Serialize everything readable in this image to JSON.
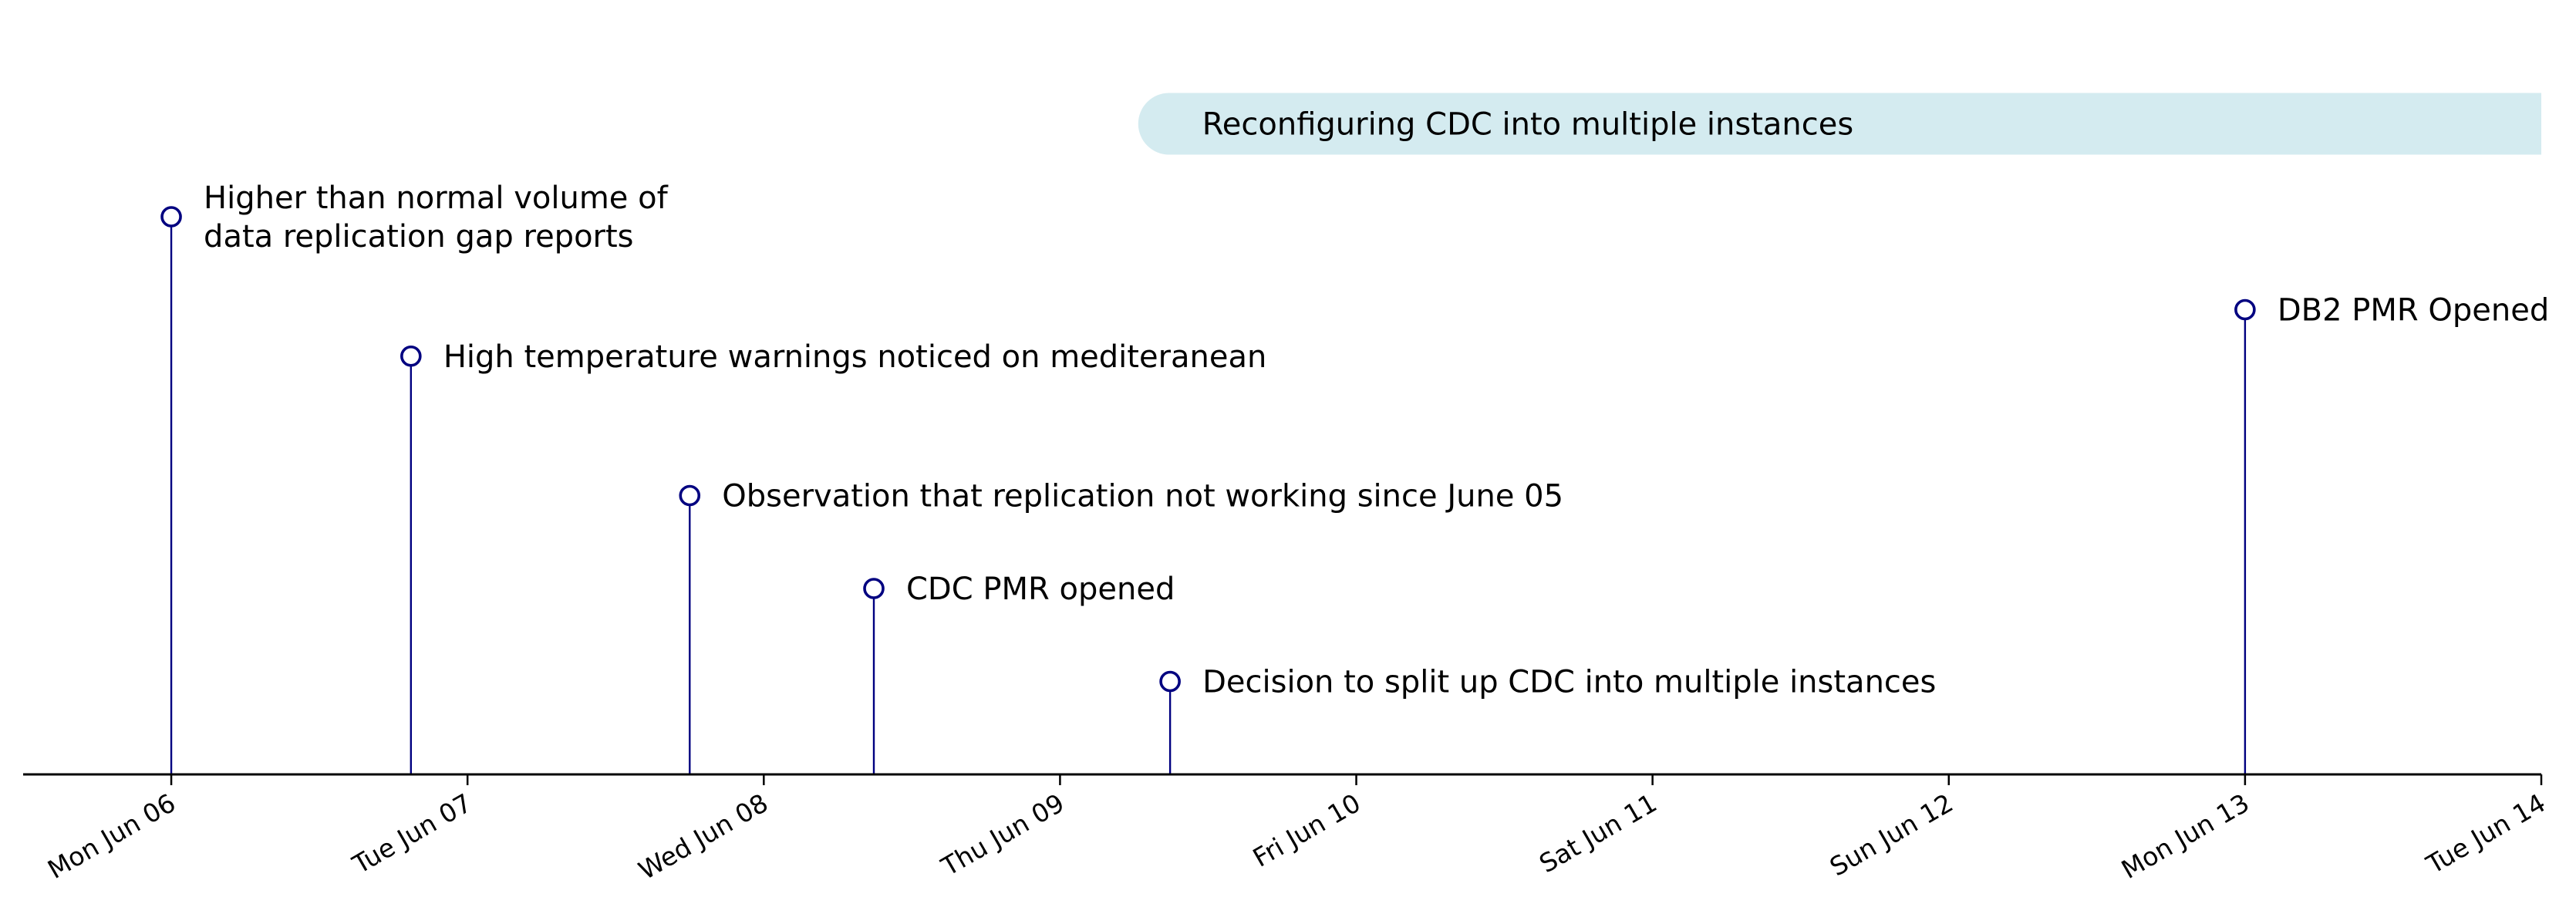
{
  "chart_data": {
    "type": "timeline",
    "x_axis": {
      "type": "date",
      "range": [
        "2022-06-05T12:00",
        "2022-06-14T00:00"
      ],
      "tick_labels": [
        "Mon Jun 06",
        "Tue Jun 07",
        "Wed Jun 08",
        "Thu Jun 09",
        "Fri Jun 10",
        "Sat Jun 11",
        "Sun Jun 12",
        "Mon Jun 13",
        "Tue Jun 14"
      ],
      "tick_dates": [
        "2022-06-06",
        "2022-06-07",
        "2022-06-08",
        "2022-06-09",
        "2022-06-10",
        "2022-06-11",
        "2022-06-12",
        "2022-06-13",
        "2022-06-14"
      ]
    },
    "y_range": [
      0,
      1.2
    ],
    "grid": false,
    "events": [
      {
        "date": "2022-06-06T00:00",
        "height": 0.9,
        "label": [
          "Higher than normal volume of",
          "data replication gap reports"
        ]
      },
      {
        "date": "2022-06-06T19:25",
        "height": 0.675,
        "label": [
          "High temperature warnings noticed on mediteranean"
        ]
      },
      {
        "date": "2022-06-07T18:00",
        "height": 0.45,
        "label": [
          "Observation that replication not working since June 05"
        ]
      },
      {
        "date": "2022-06-08T08:55",
        "height": 0.3,
        "label": [
          "CDC PMR opened"
        ]
      },
      {
        "date": "2022-06-09T08:55",
        "height": 0.15,
        "label": [
          "Decision to split up CDC into multiple instances"
        ]
      },
      {
        "date": "2022-06-13T00:00",
        "height": 0.75,
        "label": [
          "DB2 PMR Opened"
        ]
      }
    ],
    "periods": [
      {
        "start": "2022-06-09T06:20",
        "end": "2022-06-14T00:00",
        "height": 1.05,
        "label": "Reconfiguring CDC into multiple instances"
      }
    ],
    "colors": {
      "marker": "#000080",
      "stem": "#000080",
      "period": "#d4ebf0",
      "axis": "#000000"
    }
  }
}
